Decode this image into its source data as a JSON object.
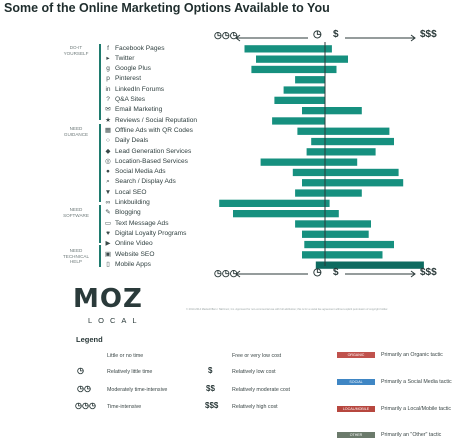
{
  "title": "Some of the Online Marketing Options Available to You",
  "group_labels": [
    {
      "text": "DO-IT YOURSELF"
    },
    {
      "text": "NEED GUIDANCE"
    },
    {
      "text": "NEED SOFTWARE"
    },
    {
      "text": "NEED TECHNICAL HELP"
    }
  ],
  "axis": {
    "time_symbol": "◷",
    "time_high": "◷◷◷",
    "cost_low": "$",
    "cost_high": "$$$"
  },
  "colors": {
    "bar": "#16907f",
    "bar_dark": "#0e6b60",
    "group_bar": "#1f7b6e",
    "axis": "#2b3a3a"
  },
  "chart_data": {
    "type": "bar",
    "orientation": "horizontal",
    "title": "Some of the Online Marketing Options Available to You",
    "x_axis": {
      "left_label": "time-intensive",
      "right_label": "relatively high cost",
      "center_markers": [
        "◷",
        "$"
      ]
    },
    "categories": [
      "Facebook Pages",
      "Twitter",
      "Google Plus",
      "Pinterest",
      "LinkedIn Forums",
      "Q&A Sites",
      "Email Marketing",
      "Reviews / Social Reputation",
      "Offline Ads with QR Codes",
      "Daily Deals",
      "Lead Generation Services",
      "Location-Based Services",
      "Social Media Ads",
      "Search / Display Ads",
      "Local SEO",
      "Linkbuilding",
      "Blogging",
      "Text Message Ads",
      "Digital Loyalty Programs",
      "Online Video",
      "Website SEO",
      "Mobile Apps"
    ],
    "icons": [
      "facebook-icon",
      "twitter-icon",
      "google-plus-icon",
      "pinterest-icon",
      "linkedin-icon",
      "qa-icon",
      "email-icon",
      "reviews-icon",
      "qr-code-icon",
      "daily-deals-icon",
      "lead-gen-icon",
      "location-icon",
      "social-ads-icon",
      "search-icon",
      "local-seo-icon",
      "link-icon",
      "blog-icon",
      "text-message-icon",
      "loyalty-icon",
      "video-icon",
      "website-icon",
      "mobile-icon"
    ],
    "time_values": [
      -3.5,
      -3.0,
      -3.2,
      -1.3,
      -1.8,
      -2.2,
      -1.0,
      -2.3,
      -1.2,
      -0.6,
      -0.8,
      -2.8,
      -1.4,
      -1.0,
      -1.3,
      -4.6,
      -4.0,
      -1.3,
      -1.0,
      -0.9,
      -1.0,
      -0.4
    ],
    "cost_values": [
      0.3,
      1.0,
      0.5,
      0.0,
      0.0,
      0.0,
      1.6,
      0.0,
      2.8,
      3.0,
      2.2,
      1.4,
      3.2,
      3.4,
      1.6,
      0.2,
      0.6,
      2.0,
      1.9,
      3.0,
      2.5,
      4.3
    ],
    "xlim": [
      -5,
      5
    ]
  },
  "brand": {
    "logo": "MOZ",
    "sub": "LOCAL"
  },
  "fine_print": "© 2013-2014 MarketOffers / SEOmoz, Inc. Approved for non-commercial use with full attribution; this is for a social fee agreement without explicit permission of copyright holder.",
  "legend": {
    "title": "Legend",
    "time_header": "Little or no time",
    "cost_header": "Free or very low cost",
    "time_items": [
      {
        "symbol": "◷",
        "label": "Relatively little time"
      },
      {
        "symbol": "◷◷",
        "label": "Moderately time-intensive"
      },
      {
        "symbol": "◷◷◷",
        "label": "Time-intensive"
      }
    ],
    "cost_items": [
      {
        "symbol": "$",
        "label": "Relatively low cost"
      },
      {
        "symbol": "$$",
        "label": "Relatively moderate cost"
      },
      {
        "symbol": "$$$",
        "label": "Relatively high cost"
      }
    ],
    "tactics": [
      {
        "badge": "ORGANIC",
        "color": "#c0524d",
        "label": "Primarily an Organic tactic"
      },
      {
        "badge": "SOCIAL",
        "color": "#3f86c4",
        "label": "Primarily a Social Media tactic"
      },
      {
        "badge": "LOCAL/MOBILE",
        "color": "#b7473f",
        "label": "Primarily a Local/Mobile tactic"
      },
      {
        "badge": "OTHER",
        "color": "#6b7a6b",
        "label": "Primarily an \"Other\" tactic"
      }
    ]
  }
}
